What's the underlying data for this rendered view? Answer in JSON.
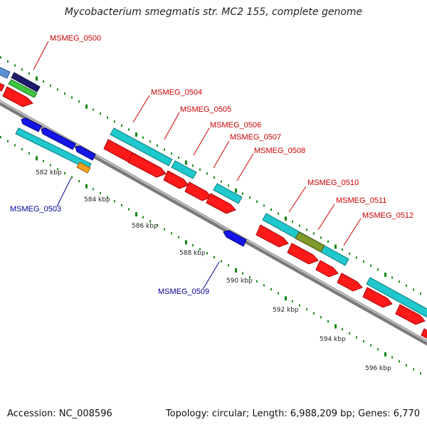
{
  "title": "Mycobacterium smegmatis str. MC2 155, complete genome",
  "footer": {
    "accession": "Accession: NC_008596",
    "topology": "Topology: circular; Length: 6,988,209 bp; Genes: 6,770"
  },
  "scale_labels": [
    "582 kbp",
    "584 kbp",
    "586 kbp",
    "588 kbp",
    "590 kbp",
    "592 kbp",
    "594 kbp",
    "596 kbp"
  ],
  "gene_labels": {
    "forward": [
      "MSMEG_0500",
      "MSMEG_0504",
      "MSMEG_0505",
      "MSMEG_0506",
      "MSMEG_0507",
      "MSMEG_0508",
      "MSMEG_0510",
      "MSMEG_0511",
      "MSMEG_0512"
    ],
    "reverse": [
      "MSMEG_0503",
      "MSMEG_0509"
    ]
  },
  "colors": {
    "cds": "#ff0000",
    "gene_feature": "#1fc8cc",
    "reverse_gene": "#1010e0",
    "label_forward": "#cc0000",
    "label_reverse": "#000099",
    "tick": "#138a13",
    "backbone": "#8a8a8a"
  }
}
